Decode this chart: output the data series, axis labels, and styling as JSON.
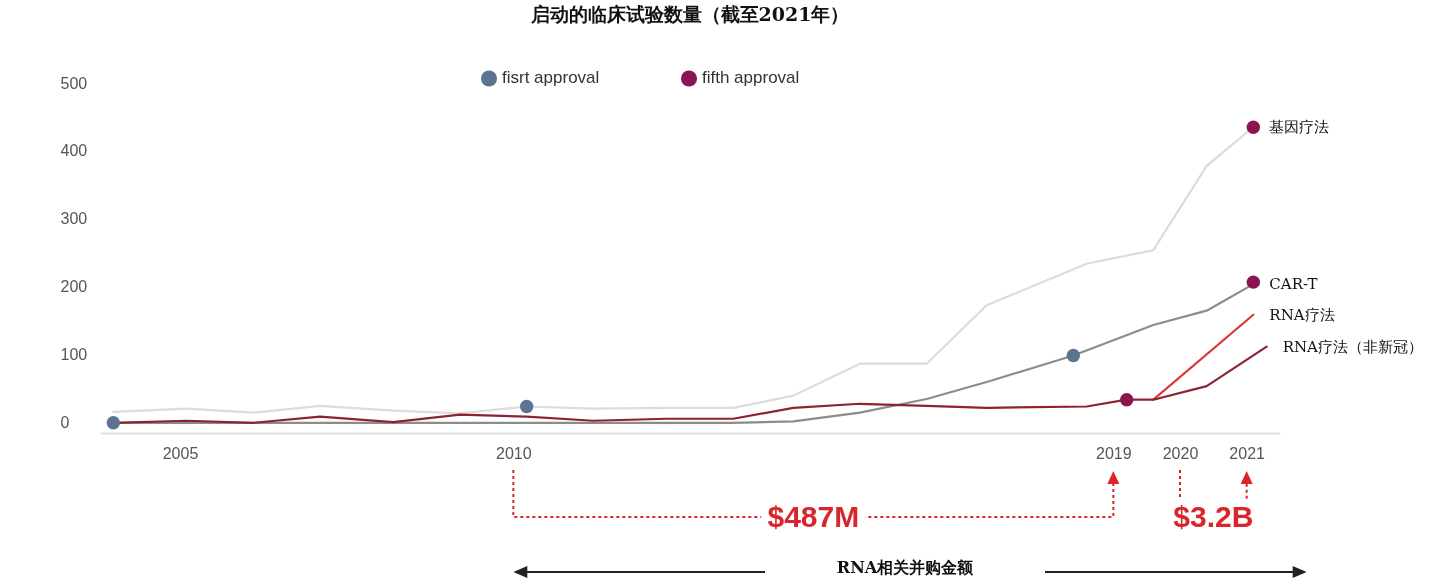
{
  "chart_data": {
    "type": "line",
    "title": "启动的临床试验数量（截至2021年）",
    "xlim": [
      2003.8,
      2021.5
    ],
    "xticks": [
      2005,
      2010,
      2019,
      2020,
      2021
    ],
    "ylim": [
      -15,
      500
    ],
    "yticks": [
      0,
      100,
      200,
      300,
      400,
      500
    ],
    "legend": "top",
    "line_style": "solid",
    "series": [
      {
        "name": "基因疗法",
        "color": "#dcdcdc",
        "x": [
          2004,
          2005.1,
          2006.1,
          2007.1,
          2008.2,
          2009.2,
          2010.2,
          2011.2,
          2012.3,
          2013.3,
          2014.2,
          2015.2,
          2016.2,
          2017.1,
          2018.6,
          2019.6,
          2020.4,
          2021.1
        ],
        "values": [
          16,
          21,
          15,
          25,
          18,
          14,
          24,
          21,
          22,
          22,
          40,
          87,
          87,
          173,
          234,
          254,
          378,
          435
        ]
      },
      {
        "name": "CAR-T",
        "color": "#8c8c8c",
        "x": [
          2004,
          2005.1,
          2006.1,
          2007.1,
          2008.2,
          2009.2,
          2010.2,
          2011.2,
          2012.3,
          2013.3,
          2014.2,
          2015.2,
          2016.2,
          2017.1,
          2018.4,
          2019.6,
          2020.4,
          2021.1
        ],
        "values": [
          0,
          0,
          0,
          0,
          0,
          0,
          0,
          0,
          0,
          0,
          2,
          15,
          35,
          60,
          99,
          144,
          165,
          204
        ]
      },
      {
        "name": "RNA疗法",
        "color": "#d9383a",
        "x": [
          2019.6,
          2021.1
        ],
        "values": [
          34,
          159
        ]
      },
      {
        "name": "RNA疗法（非新冠）",
        "color": "#8b2332",
        "x": [
          2004,
          2005.1,
          2006.1,
          2007.1,
          2008.2,
          2009.2,
          2010.2,
          2011.2,
          2012.3,
          2013.3,
          2014.2,
          2015.2,
          2016.2,
          2017.1,
          2018.6,
          2019.2,
          2019.6,
          2020.4,
          2021.3
        ],
        "values": [
          0,
          3,
          0,
          9,
          1,
          12,
          9,
          3,
          6,
          6,
          22,
          28,
          25,
          22,
          24,
          34,
          34,
          54,
          112
        ]
      },
      {
        "name": "fisrt approval",
        "type": "scatter",
        "color": "#5b7490",
        "x": [
          2004,
          2010.2,
          2018.4
        ],
        "values": [
          0,
          24,
          99
        ]
      },
      {
        "name": "fifth approval",
        "type": "scatter",
        "color": "#8c1452",
        "x": [
          2019.2,
          2021.1,
          2021.1
        ],
        "values": [
          34,
          435,
          207
        ]
      }
    ],
    "annotations": [
      "$487M",
      "$3.2B",
      "RNA相关并购金额"
    ]
  }
}
